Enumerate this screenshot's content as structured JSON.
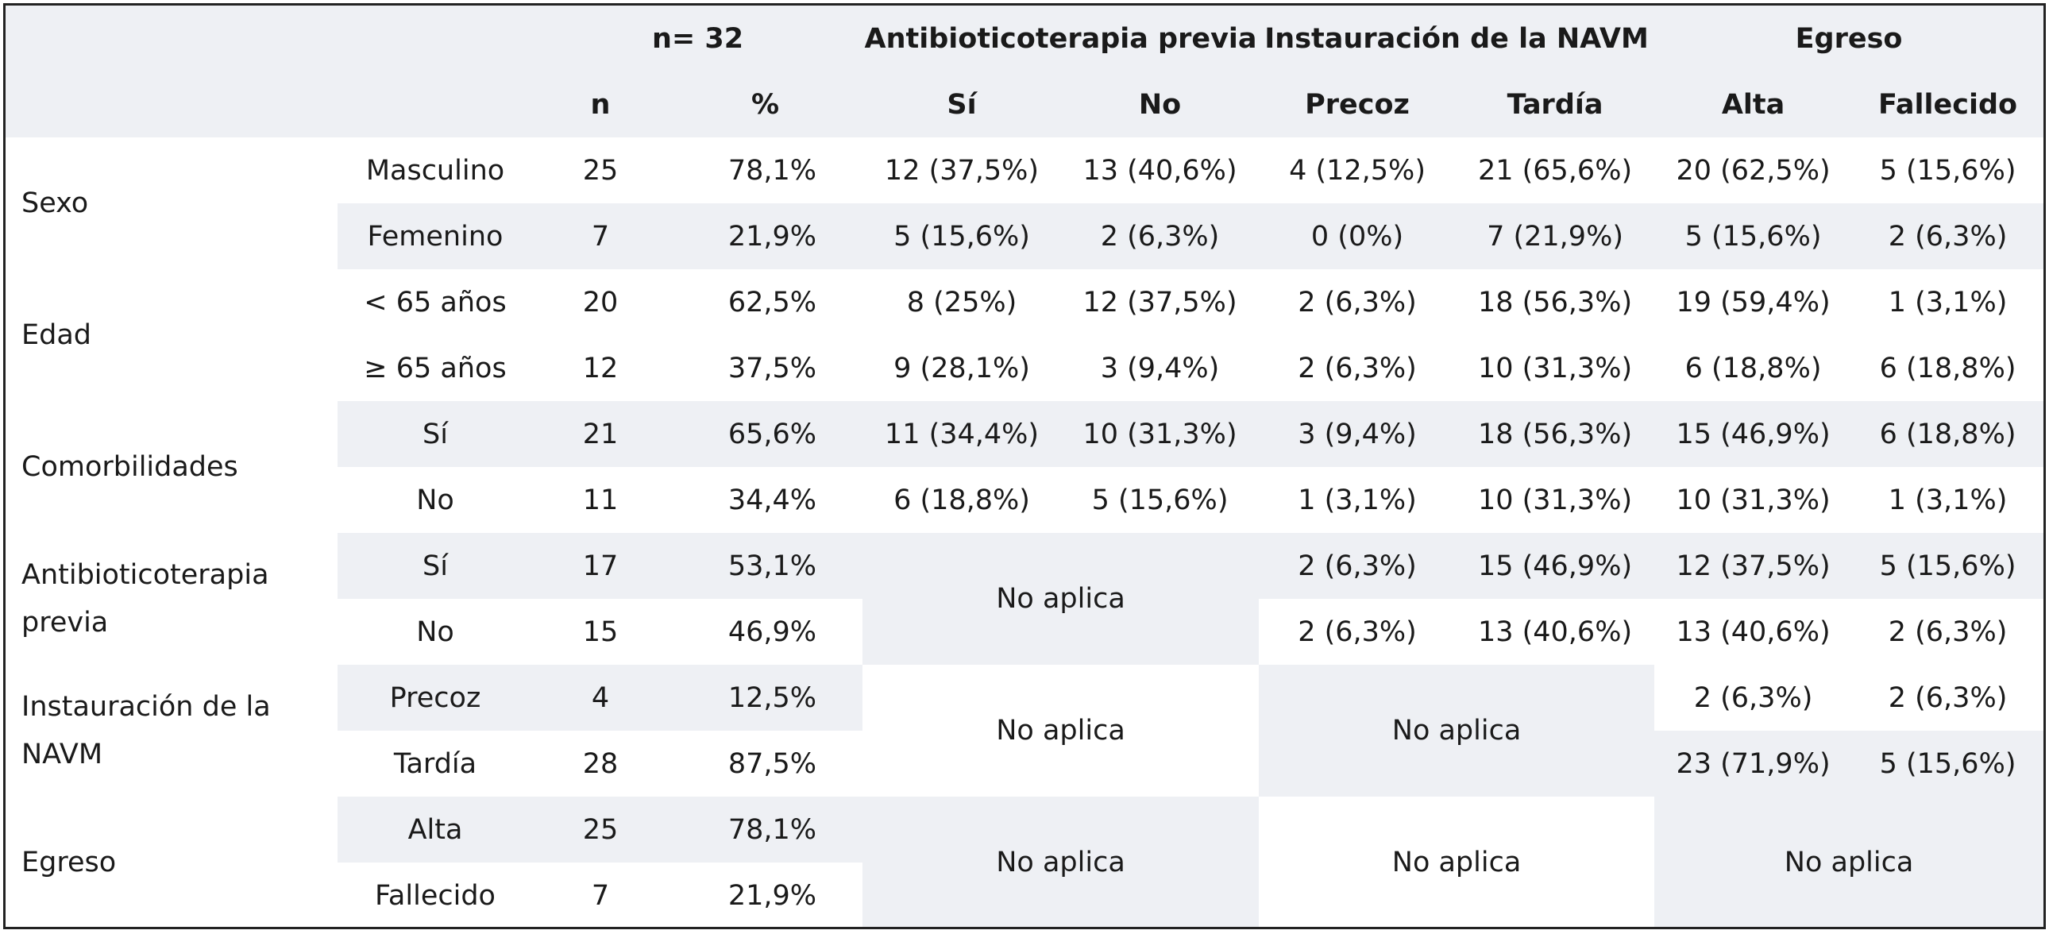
{
  "header": {
    "n_total": "n= 32",
    "antibio": "Antibioticoterapia previa",
    "instauracion": "Instauración de la NAVM",
    "egreso": "Egreso",
    "n": "n",
    "pct": "%",
    "si": "Sí",
    "no": "No",
    "precoz": "Precoz",
    "tardia": "Tardía",
    "alta": "Alta",
    "fallecido": "Fallecido"
  },
  "na": "No aplica",
  "groups": {
    "sexo": "Sexo",
    "edad": "Edad",
    "comorbilidades": "Comorbilidades",
    "antibio": "Antibioticoterapia previa",
    "instauracion": "Instauración de la NAVM",
    "egreso": "Egreso"
  },
  "rows": [
    {
      "label": "Masculino",
      "n": "25",
      "pct": "78,1%",
      "anti_si": "12 (37,5%)",
      "anti_no": "13 (40,6%)",
      "precoz": "4 (12,5%)",
      "tardia": "21 (65,6%)",
      "alta": "20 (62,5%)",
      "fallecido": "5 (15,6%)"
    },
    {
      "label": "Femenino",
      "n": "7",
      "pct": "21,9%",
      "anti_si": "5 (15,6%)",
      "anti_no": "2 (6,3%)",
      "precoz": "0 (0%)",
      "tardia": "7 (21,9%)",
      "alta": "5 (15,6%)",
      "fallecido": "2 (6,3%)"
    },
    {
      "label": "< 65 años",
      "n": "20",
      "pct": "62,5%",
      "anti_si": "8 (25%)",
      "anti_no": "12 (37,5%)",
      "precoz": "2 (6,3%)",
      "tardia": "18 (56,3%)",
      "alta": "19 (59,4%)",
      "fallecido": "1 (3,1%)"
    },
    {
      "label": "≥ 65 años",
      "n": "12",
      "pct": "37,5%",
      "anti_si": "9 (28,1%)",
      "anti_no": "3 (9,4%)",
      "precoz": "2 (6,3%)",
      "tardia": "10 (31,3%)",
      "alta": "6 (18,8%)",
      "fallecido": "6 (18,8%)"
    },
    {
      "label": "Sí",
      "n": "21",
      "pct": "65,6%",
      "anti_si": "11 (34,4%)",
      "anti_no": "10 (31,3%)",
      "precoz": "3 (9,4%)",
      "tardia": "18 (56,3%)",
      "alta": "15 (46,9%)",
      "fallecido": "6 (18,8%)"
    },
    {
      "label": "No",
      "n": "11",
      "pct": "34,4%",
      "anti_si": "6 (18,8%)",
      "anti_no": "5 (15,6%)",
      "precoz": "1 (3,1%)",
      "tardia": "10 (31,3%)",
      "alta": "10 (31,3%)",
      "fallecido": "1 (3,1%)"
    },
    {
      "label": "Sí",
      "n": "17",
      "pct": "53,1%",
      "precoz": "2 (6,3%)",
      "tardia": "15 (46,9%)",
      "alta": "12 (37,5%)",
      "fallecido": "5 (15,6%)"
    },
    {
      "label": "No",
      "n": "15",
      "pct": "46,9%",
      "precoz": "2 (6,3%)",
      "tardia": "13 (40,6%)",
      "alta": "13 (40,6%)",
      "fallecido": "2 (6,3%)"
    },
    {
      "label": "Precoz",
      "n": "4",
      "pct": "12,5%",
      "alta": "2 (6,3%)",
      "fallecido": "2 (6,3%)"
    },
    {
      "label": "Tardía",
      "n": "28",
      "pct": "87,5%",
      "alta": "23 (71,9%)",
      "fallecido": "5 (15,6%)"
    },
    {
      "label": "Alta",
      "n": "25",
      "pct": "78,1%"
    },
    {
      "label": "Fallecido",
      "n": "7",
      "pct": "21,9%"
    }
  ]
}
